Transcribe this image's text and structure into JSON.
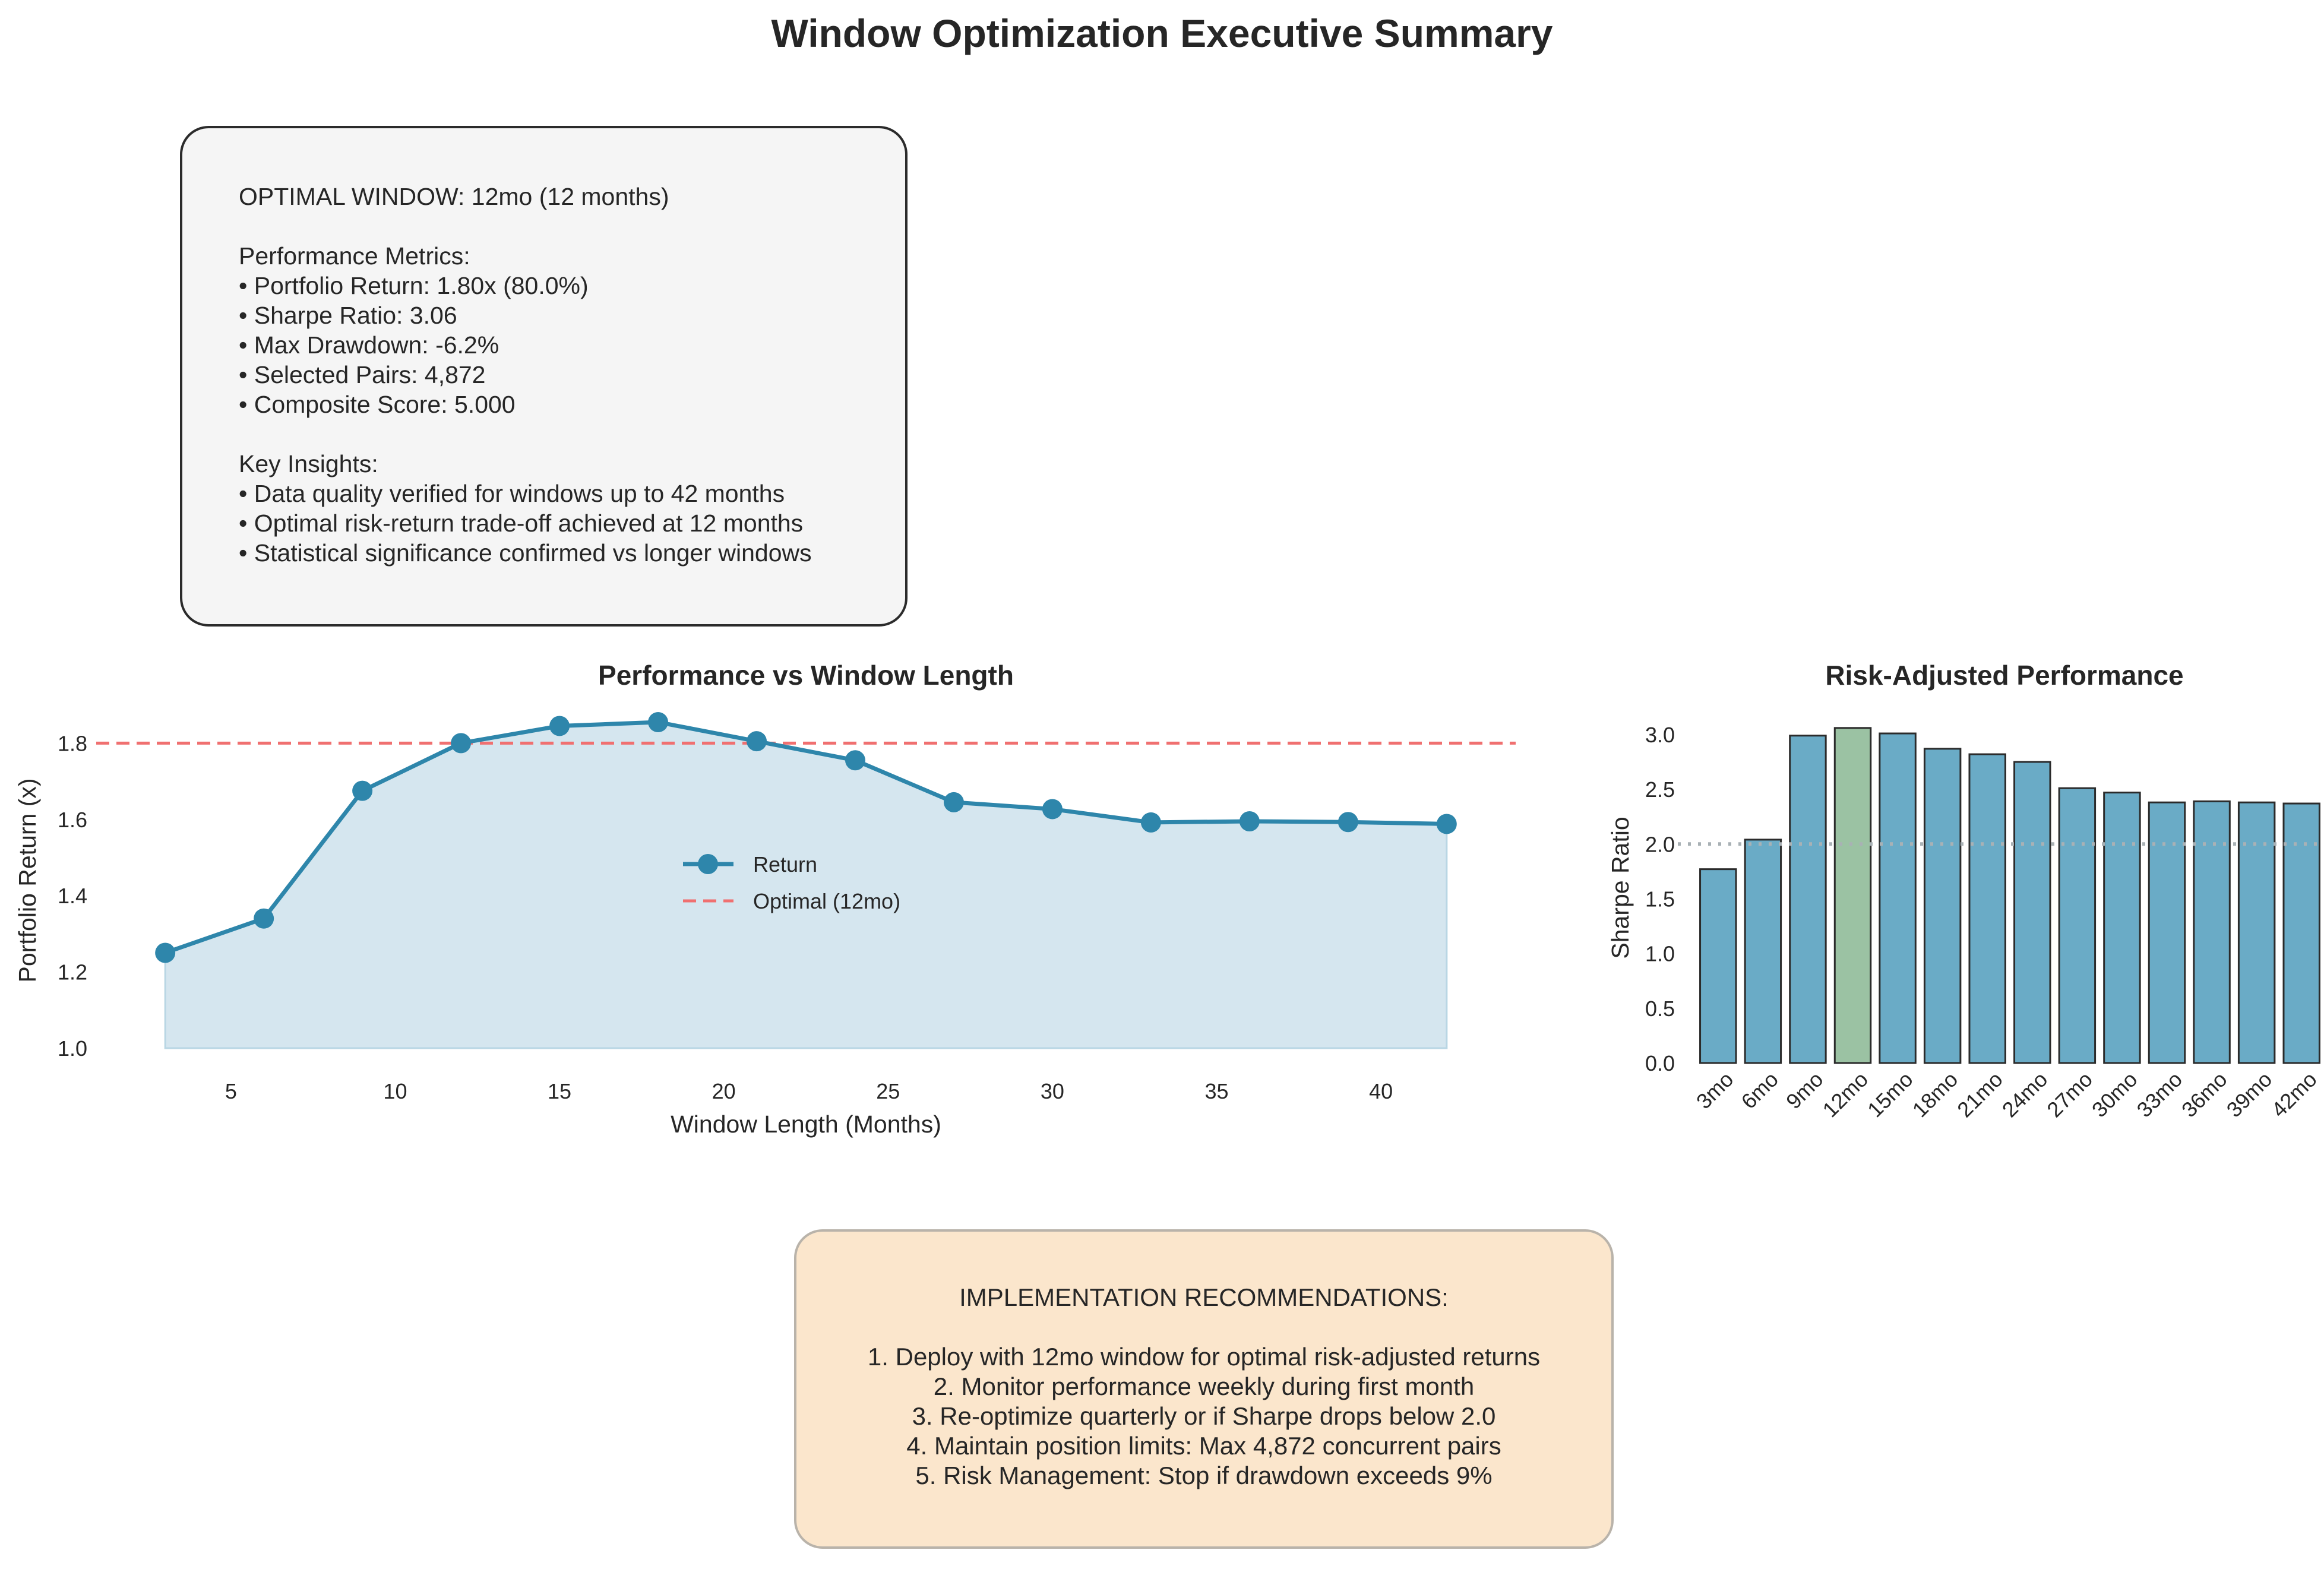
{
  "title": "Window Optimization Executive Summary",
  "summary": {
    "optimal": "OPTIMAL WINDOW: 12mo (12 months)",
    "metrics_header": "Performance Metrics:",
    "metrics": [
      "• Portfolio Return: 1.80x (80.0%)",
      "• Sharpe Ratio: 3.06",
      "• Max Drawdown: -6.2%",
      "• Selected Pairs: 4,872",
      "• Composite Score: 5.000"
    ],
    "insights_header": "Key Insights:",
    "insights": [
      "• Data quality verified for windows up to 42 months",
      "• Optimal risk-return trade-off achieved at 12 months",
      "• Statistical significance confirmed vs longer windows"
    ]
  },
  "recommendations": {
    "header": "IMPLEMENTATION RECOMMENDATIONS:",
    "items": [
      "1. Deploy with 12mo window for optimal risk-adjusted returns",
      "2. Monitor performance weekly during first month",
      "3. Re-optimize quarterly or if Sharpe drops below 2.0",
      "4. Maintain position limits: Max 4,872 concurrent pairs",
      "5. Risk Management: Stop if drawdown exceeds 9%"
    ]
  },
  "chart_data": [
    {
      "type": "line",
      "title": "Performance vs Window Length",
      "xlabel": "Window Length (Months)",
      "ylabel": "Portfolio Return (x)",
      "x": [
        3,
        6,
        9,
        12,
        15,
        18,
        21,
        24,
        27,
        30,
        33,
        36,
        39,
        42
      ],
      "series": [
        {
          "name": "Return",
          "values": [
            1.25,
            1.34,
            1.675,
            1.8,
            1.845,
            1.855,
            1.805,
            1.755,
            1.645,
            1.627,
            1.592,
            1.595,
            1.593,
            1.588
          ],
          "color": "#2e86ab"
        }
      ],
      "reference_line": {
        "name": "Optimal (12mo)",
        "y": 1.8,
        "color": "#f07070",
        "style": "dashed"
      },
      "fill_color": "#d5e6ef",
      "xticks": [
        5,
        10,
        15,
        20,
        25,
        30,
        35,
        40
      ],
      "yticks": [
        1.0,
        1.2,
        1.4,
        1.6,
        1.8
      ],
      "xlim": [
        0.9,
        44.1
      ],
      "ylim": [
        1.0,
        1.88
      ],
      "legend": "center",
      "grid": false
    },
    {
      "type": "bar",
      "title": "Risk-Adjusted Performance",
      "ylabel": "Sharpe Ratio",
      "categories": [
        "3mo",
        "6mo",
        "9mo",
        "12mo",
        "15mo",
        "18mo",
        "21mo",
        "24mo",
        "27mo",
        "30mo",
        "33mo",
        "36mo",
        "39mo",
        "42mo"
      ],
      "values": [
        1.77,
        2.04,
        2.99,
        3.06,
        3.01,
        2.87,
        2.82,
        2.75,
        2.51,
        2.47,
        2.38,
        2.39,
        2.38,
        2.37
      ],
      "highlight_index": 3,
      "bar_color": "#6aabc6",
      "highlight_color": "#9bc2a3",
      "reference_line": {
        "y": 2.0,
        "style": "dotted",
        "color": "#a9b1b5"
      },
      "yticks": [
        0.0,
        0.5,
        1.0,
        1.5,
        2.0,
        2.5,
        3.0
      ],
      "ylim": [
        0,
        3.2
      ],
      "grid": false
    }
  ]
}
